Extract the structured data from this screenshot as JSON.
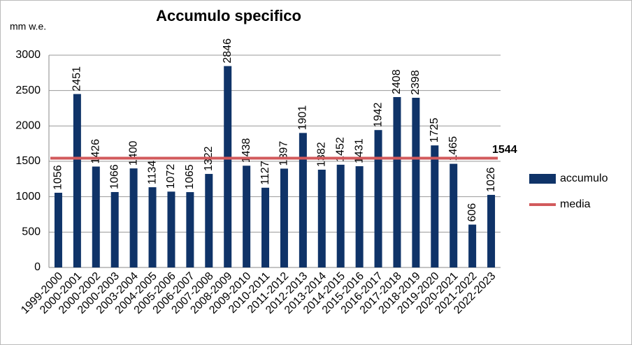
{
  "chart_data": {
    "type": "bar",
    "title": "Accumulo specifico",
    "y_axis_label": "mm w.e.",
    "categories": [
      "1999-2000",
      "2000-2001",
      "2000-2002",
      "2000-2003",
      "2003-2004",
      "2004-2005",
      "2005-2006",
      "2006-2007",
      "2007-2008",
      "2008-2009",
      "2009-2010",
      "2010-2011",
      "2011-2012",
      "2012-2013",
      "2013-2014",
      "2014-2015",
      "2015-2016",
      "2016-2017",
      "2017-2018",
      "2018-2019",
      "2019-2020",
      "2020-2021",
      "2021-2022",
      "2022-2023"
    ],
    "series": [
      {
        "name": "accumulo",
        "color": "#0f3368",
        "values": [
          1056,
          2451,
          1426,
          1066,
          1400,
          1134,
          1072,
          1065,
          1322,
          2846,
          1438,
          1127,
          1397,
          1901,
          1382,
          1452,
          1431,
          1942,
          2408,
          2398,
          1725,
          1465,
          606,
          1026
        ]
      }
    ],
    "reference_line": {
      "name": "media",
      "color": "#d25a5c",
      "value": 1544
    },
    "ylim": [
      0,
      3000
    ],
    "yticks": [
      0,
      500,
      1000,
      1500,
      2000,
      2500,
      3000
    ],
    "grid": true,
    "legend": "right"
  }
}
